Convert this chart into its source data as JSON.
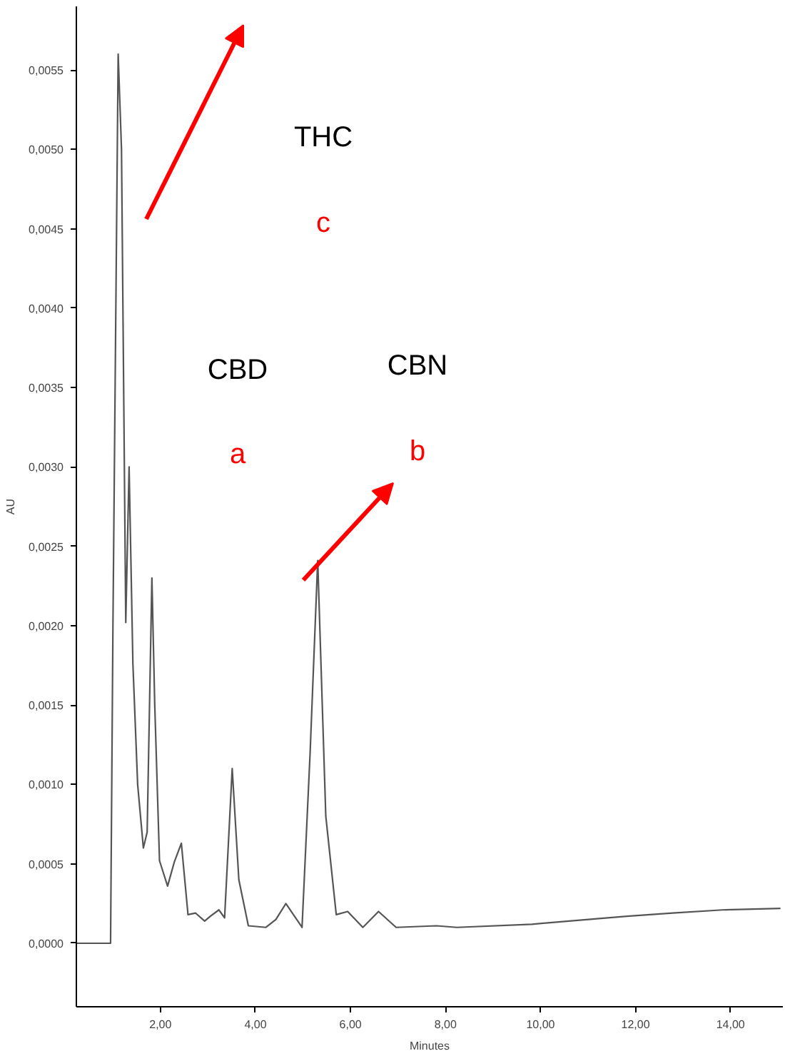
{
  "chart_data": {
    "type": "line",
    "xlabel": "Minutes",
    "ylabel": "AU",
    "x": [
      0.23,
      0.5,
      0.95,
      1.0,
      1.11,
      1.18,
      1.27,
      1.34,
      1.42,
      1.52,
      1.64,
      1.72,
      1.82,
      1.88,
      1.98,
      2.15,
      2.29,
      2.44,
      2.58,
      2.74,
      2.93,
      3.05,
      3.23,
      3.35,
      3.51,
      3.65,
      3.85,
      4.22,
      4.43,
      4.64,
      4.98,
      5.15,
      5.31,
      5.48,
      5.7,
      5.94,
      6.26,
      6.59,
      6.96,
      7.81,
      8.24,
      9.82,
      10.6,
      11.82,
      12.78,
      13.83,
      15.05
    ],
    "series": [
      {
        "color": "#555555",
        "values": [
          0.0,
          0.0,
          0.0,
          0.002,
          0.0056,
          0.005,
          0.00202,
          0.003,
          0.00176,
          0.001,
          0.0006,
          0.0007,
          0.0023,
          0.0015,
          0.00052,
          0.00036,
          0.00051,
          0.00063,
          0.00018,
          0.00019,
          0.00014,
          0.00017,
          0.00021,
          0.00016,
          0.0011,
          0.0004,
          0.00011,
          0.0001,
          0.00015,
          0.00025,
          0.0001,
          0.0012,
          0.00241,
          0.0008,
          0.00018,
          0.0002,
          0.0001,
          0.0002,
          0.0001,
          0.00011,
          0.0001,
          0.00012,
          0.00014,
          0.00017,
          0.00019,
          0.00021,
          0.00022
        ]
      }
    ],
    "xlim": [
      0.23,
      15.1
    ],
    "ylim": [
      -0.0004,
      0.0059
    ],
    "xticks": [
      {
        "value": 2,
        "label": "2,00"
      },
      {
        "value": 4,
        "label": "4,00"
      },
      {
        "value": 6,
        "label": "6,00"
      },
      {
        "value": 8,
        "label": "8,00"
      },
      {
        "value": 10,
        "label": "10,00"
      },
      {
        "value": 12,
        "label": "12,00"
      },
      {
        "value": 14,
        "label": "14,00"
      }
    ],
    "yticks": [
      {
        "value": 0,
        "label": "0,0000"
      },
      {
        "value": 0.0005,
        "label": "0,0005"
      },
      {
        "value": 0.001,
        "label": "0,0010"
      },
      {
        "value": 0.0015,
        "label": "0,0015"
      },
      {
        "value": 0.002,
        "label": "0,0020"
      },
      {
        "value": 0.0025,
        "label": "0,0025"
      },
      {
        "value": 0.003,
        "label": "0,0030"
      },
      {
        "value": 0.0035,
        "label": "0,0035"
      },
      {
        "value": 0.004,
        "label": "0,0040"
      },
      {
        "value": 0.0045,
        "label": "0,0045"
      },
      {
        "value": 0.005,
        "label": "0,0050"
      },
      {
        "value": 0.0055,
        "label": "0,0055"
      }
    ],
    "grid": false,
    "marker": "none",
    "line_style": "solid",
    "annotations": [
      "THC",
      "c",
      "CBD",
      "a",
      "CBN",
      "b"
    ]
  }
}
